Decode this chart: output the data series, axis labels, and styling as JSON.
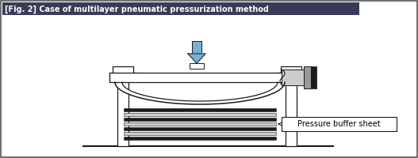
{
  "title": "[Fig. 2] Case of multilayer pneumatic pressurization method",
  "title_bg": "#3a3a5a",
  "title_color": "#ffffff",
  "bg_color": "#ffffff",
  "border_color": "#555555",
  "label_text": "Pressure buffer sheet",
  "arrow_color": "#7ab0d4",
  "dark_color": "#1a1a1a",
  "gray_light": "#cccccc",
  "gray_medium": "#999999",
  "gray_dark": "#555555"
}
